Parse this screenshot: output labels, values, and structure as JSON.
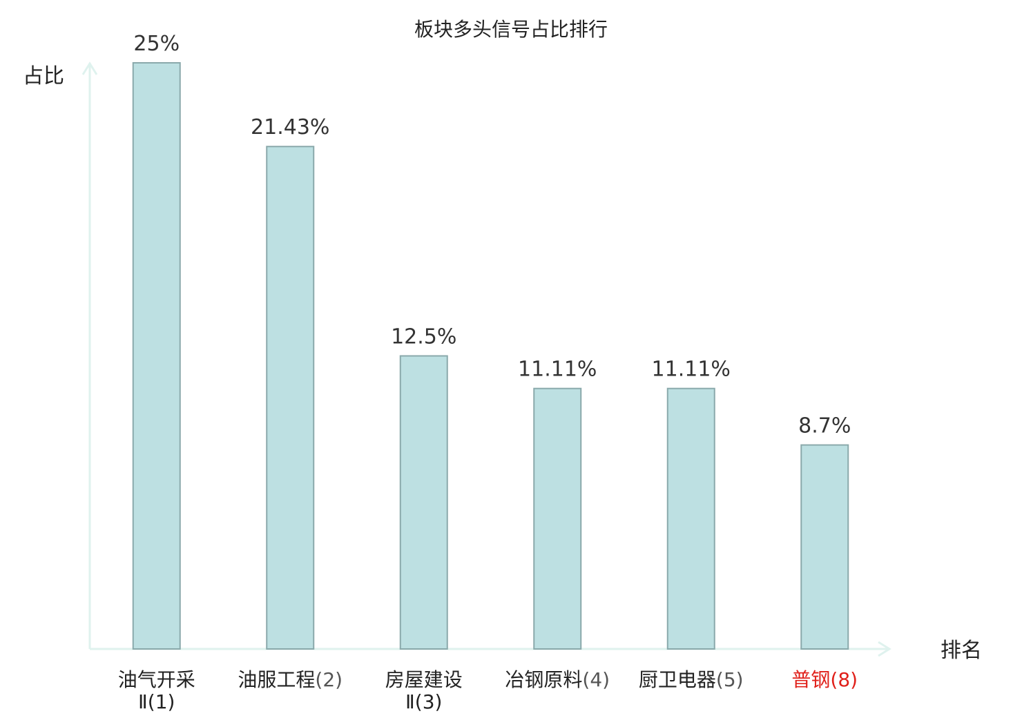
{
  "chart_data": {
    "type": "bar",
    "title": "板块多头信号占比排行",
    "ylabel": "占比",
    "xlabel": "排名",
    "ylim": [
      0,
      25
    ],
    "grid": false,
    "colors": {
      "bar_fill": "#bde0e2",
      "bar_stroke": "#8aa9ab",
      "axis": "#dff2ee",
      "highlight": "#e0201a"
    },
    "categories": [
      {
        "name": "油气开采",
        "name2": "Ⅱ",
        "rank": "(1)",
        "highlight": false
      },
      {
        "name": "油服工程",
        "name2": "",
        "rank": "(2)",
        "highlight": false
      },
      {
        "name": "房屋建设",
        "name2": "Ⅱ",
        "rank": "(3)",
        "highlight": false
      },
      {
        "name": "冶钢原料",
        "name2": "",
        "rank": "(4)",
        "highlight": false
      },
      {
        "name": "厨卫电器",
        "name2": "",
        "rank": "(5)",
        "highlight": false
      },
      {
        "name": "普钢",
        "name2": "",
        "rank": "(8)",
        "highlight": true
      }
    ],
    "values": [
      25,
      21.43,
      12.5,
      11.11,
      11.11,
      8.7
    ],
    "value_labels": [
      "25%",
      "21.43%",
      "12.5%",
      "11.11%",
      "11.11%",
      "8.7%"
    ]
  }
}
